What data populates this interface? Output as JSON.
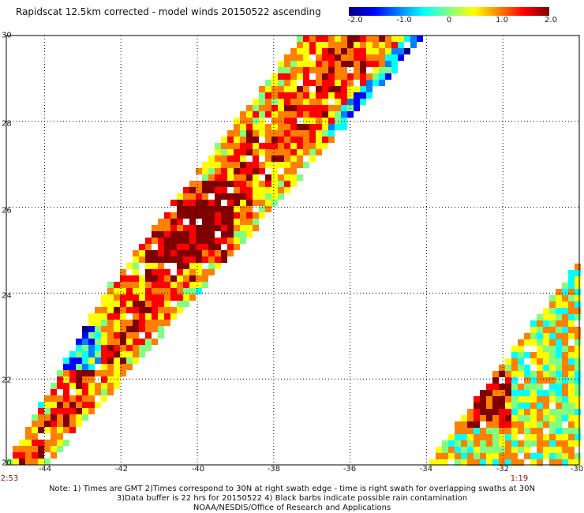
{
  "title": "Rapidscat 12.5km corrected - model winds 20150522 ascending",
  "colorbar": {
    "ticks": [
      "-2.0",
      "-1.0",
      "0",
      "1.0",
      "2.0"
    ],
    "min": -2.0,
    "max": 2.0,
    "colors": [
      "#000080",
      "#0000ff",
      "#0080ff",
      "#00ffff",
      "#80ff80",
      "#ffff00",
      "#ff8000",
      "#ff0000",
      "#800000"
    ]
  },
  "map": {
    "lat_range": [
      20,
      30
    ],
    "lon_range": [
      -45,
      -30
    ],
    "lat_labels": [
      "20",
      "22",
      "24",
      "26",
      "28",
      "30"
    ],
    "lon_labels": [
      "-44",
      "-42",
      "-40",
      "-38",
      "-36",
      "-34",
      "-32",
      "-30"
    ],
    "grid": true,
    "time_labels": [
      "2:53",
      "1:19"
    ]
  },
  "notes": [
    "Note: 1) Times are GMT 2)Times correspond to 30N at right swath edge - time is right swath for overlapping swaths at 30N",
    "3)Data buffer is 22 hrs for 20150522 4) Black barbs indicate possible rain contamination",
    "NOAA/NESDIS/Office of Research and Applications"
  ]
}
